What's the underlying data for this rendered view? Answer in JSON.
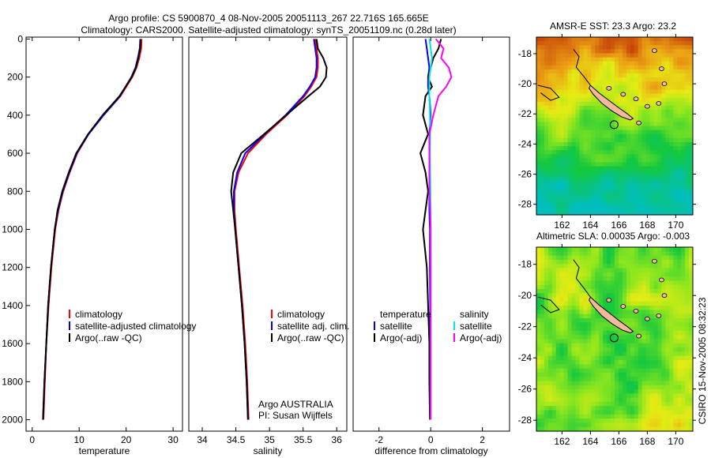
{
  "title": {
    "line1": "Argo profile: CS 5900870_4 08-Nov-2005 20051113_267 22.716S 165.665E",
    "line2": "Climatology: CARS2000. Satellite-adjusted climatology: synTS_20051109.nc (0.28d later)"
  },
  "colors": {
    "climatology": "#ff0000",
    "satellite": "#0000ff",
    "argo": "#000000",
    "sal_satellite": "#00e5e5",
    "sal_argo": "#ff00ff",
    "land": "#f4b99a"
  },
  "chart_data": [
    {
      "type": "line",
      "id": "temperature",
      "xlabel": "temperature",
      "xlim": [
        -1.3,
        32
      ],
      "ylim": [
        2060,
        -10
      ],
      "xticks": [
        0,
        10,
        20,
        30
      ],
      "yticks": [
        0,
        200,
        400,
        600,
        800,
        1000,
        1200,
        1400,
        1600,
        1800,
        2000
      ],
      "depth": [
        0,
        50,
        100,
        150,
        200,
        300,
        400,
        500,
        600,
        700,
        800,
        900,
        1000,
        1200,
        1400,
        1600,
        1800,
        2000
      ],
      "legend": [
        "climatology",
        "satellite-adjusted climatology",
        "Argo(..raw -QC)"
      ],
      "series": [
        {
          "name": "climatology",
          "values": [
            23.3,
            23.2,
            22.8,
            22.2,
            21.3,
            18.8,
            15.2,
            12.0,
            9.6,
            8.0,
            6.6,
            5.6,
            4.9,
            4.1,
            3.5,
            3.0,
            2.7,
            2.4
          ]
        },
        {
          "name": "satellite-adjusted climatology",
          "values": [
            23.0,
            22.9,
            22.5,
            22.0,
            21.1,
            18.7,
            15.2,
            12.0,
            9.5,
            7.9,
            6.5,
            5.5,
            4.8,
            4.0,
            3.4,
            3.0,
            2.6,
            2.3
          ]
        },
        {
          "name": "Argo(..raw -QC)",
          "values": [
            23.1,
            23.0,
            22.6,
            22.1,
            21.2,
            18.6,
            15.0,
            11.9,
            9.4,
            7.8,
            6.4,
            5.4,
            4.8,
            4.0,
            3.4,
            3.0,
            2.6,
            2.3
          ]
        }
      ]
    },
    {
      "type": "line",
      "id": "salinity",
      "xlabel": "salinity",
      "xlim": [
        33.8,
        36.15
      ],
      "ylim": [
        2060,
        -10
      ],
      "xticks": [
        34,
        34.5,
        35,
        35.5,
        36
      ],
      "yticks": [],
      "depth": [
        0,
        50,
        100,
        150,
        200,
        250,
        300,
        400,
        500,
        600,
        700,
        800,
        900,
        1000,
        1200,
        1400,
        1600,
        1800,
        2000
      ],
      "legend": [
        "climatology",
        "satellite adj. clim.",
        "Argo(..raw -QC)"
      ],
      "annotation": [
        "Argo AUSTRALIA",
        "PI: Susan Wijffels"
      ],
      "series": [
        {
          "name": "climatology",
          "values": [
            35.68,
            35.7,
            35.72,
            35.72,
            35.7,
            35.62,
            35.52,
            35.26,
            34.95,
            34.68,
            34.54,
            34.48,
            34.48,
            34.5,
            34.55,
            34.6,
            34.64,
            34.67,
            34.69
          ]
        },
        {
          "name": "satellite adj. clim.",
          "values": [
            35.66,
            35.68,
            35.7,
            35.7,
            35.68,
            35.6,
            35.5,
            35.24,
            34.93,
            34.64,
            34.52,
            34.47,
            34.47,
            34.49,
            34.54,
            34.59,
            34.63,
            34.66,
            34.68
          ]
        },
        {
          "name": "Argo(..raw -QC)",
          "values": [
            35.7,
            35.72,
            35.8,
            35.85,
            35.84,
            35.75,
            35.58,
            35.25,
            34.92,
            34.58,
            34.46,
            34.43,
            34.46,
            34.49,
            34.54,
            34.59,
            34.63,
            34.66,
            34.68
          ]
        }
      ]
    },
    {
      "type": "line",
      "id": "difference",
      "xlabel": "difference from climatology",
      "xlim": [
        -3.0,
        3.05
      ],
      "ylim": [
        2060,
        -10
      ],
      "xticks": [
        -2,
        0,
        2
      ],
      "yticks": [],
      "depth": [
        0,
        50,
        100,
        150,
        200,
        250,
        300,
        400,
        500,
        600,
        700,
        800,
        900,
        1000,
        1200,
        1400,
        1600,
        1800,
        2000
      ],
      "legend_titles": [
        "temperature",
        "salinity"
      ],
      "legend": [
        "satellite",
        "Argo(-adj)",
        "satellite",
        "Argo(-adj)"
      ],
      "series": [
        {
          "name": "temperature satellite",
          "values": [
            -0.2,
            -0.15,
            -0.1,
            -0.05,
            -0.1,
            -0.1,
            -0.05,
            0,
            -0.05,
            -0.05,
            -0.05,
            -0.05,
            -0.05,
            -0.03,
            -0.03,
            -0.02,
            -0.02,
            -0.02,
            -0.02
          ]
        },
        {
          "name": "temperature Argo(-adj)",
          "values": [
            0.4,
            0.3,
            0.1,
            0.0,
            -0.1,
            0.05,
            -0.2,
            -0.3,
            -0.1,
            -0.4,
            -0.2,
            -0.1,
            -0.2,
            -0.3,
            -0.15,
            -0.1,
            -0.05,
            -0.05,
            -0.03
          ]
        },
        {
          "name": "salinity satellite",
          "values": [
            -0.05,
            0.0,
            0.05,
            0.0,
            -0.05,
            -0.05,
            -0.05,
            -0.03,
            -0.02,
            -0.03,
            -0.02,
            -0.01,
            -0.01,
            -0.01,
            0,
            0,
            0,
            0,
            0
          ]
        },
        {
          "name": "salinity Argo(-adj)",
          "values": [
            0.2,
            0.5,
            0.4,
            0.7,
            0.8,
            0.6,
            0.3,
            0.1,
            -0.05,
            -0.05,
            -0.05,
            -0.05,
            -0.02,
            0.0,
            0.0,
            0.0,
            0.0,
            0.0,
            0.0
          ]
        }
      ]
    },
    {
      "type": "heatmap",
      "id": "sst-map",
      "title": "AMSR-E SST: 23.3 Argo: 23.2",
      "xlim": [
        160.2,
        171.2
      ],
      "ylim": [
        -16.9,
        -28.7
      ],
      "xticks": [
        162,
        164,
        166,
        168,
        170
      ],
      "yticks": [
        -18,
        -20,
        -22,
        -24,
        -26,
        -28
      ],
      "marker": {
        "lon": 165.665,
        "lat": -22.716
      }
    },
    {
      "type": "heatmap",
      "id": "sla-map",
      "title": "Altimetric SLA: 0.00035 Argo: -0.003",
      "xlim": [
        160.2,
        171.2
      ],
      "ylim": [
        -16.9,
        -28.7
      ],
      "xticks": [
        162,
        164,
        166,
        168,
        170
      ],
      "yticks": [
        -18,
        -20,
        -22,
        -24,
        -26,
        -28
      ],
      "marker": {
        "lon": 165.665,
        "lat": -22.716
      }
    }
  ],
  "footer": "CSIRO 15-Nov-2005 08:32:23"
}
